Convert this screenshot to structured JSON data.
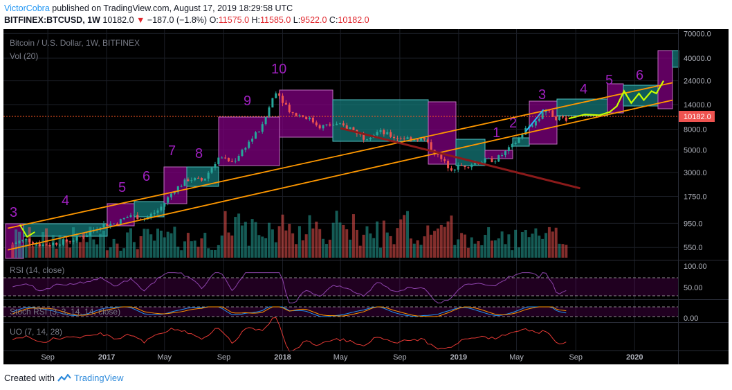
{
  "header": {
    "author": "VictorCobra",
    "published_text": "published on TradingView.com, August 17, 2019 18:29:58 UTC",
    "symbol": "BITFINEX:BTCUSD, 1W",
    "last": "10182.0",
    "change": "−187.0 (−1.8%)",
    "o_label": "O:",
    "o_value": "11575.0",
    "h_label": "H:",
    "h_value": "11585.0",
    "l_label": "L:",
    "l_value": "9522.0",
    "c_label": "C:",
    "c_value": "10182.0"
  },
  "legend": {
    "title": "Bitcoin / U.S. Dollar, 1W, BITFINEX",
    "vol": "Vol (20)",
    "rsi": "RSI (14, close)",
    "stoch": "Stoch RSI (3, 3, 14, 14, close)",
    "uo": "UO (7, 14, 28)"
  },
  "footer": {
    "created_with": "Created with",
    "brand": "TradingView"
  },
  "colors": {
    "up": "#26a69a",
    "down": "#ef5350",
    "purple_box": "#800080",
    "teal_box": "#1a8080",
    "trendline": "#ff9800",
    "wave_label": "#9c27b0",
    "rsi": "#7b3fb3",
    "uo": "#e53935"
  },
  "chart_data": {
    "type": "candlestick",
    "title": "Bitcoin / U.S. Dollar, 1W, BITFINEX",
    "y_scale": "log",
    "ylim": [
      450,
      75000
    ],
    "y_ticks": [
      "70000.0",
      "40000.0",
      "24000.0",
      "14000.0",
      "8000.0",
      "5000.0",
      "3000.0",
      "1750.0",
      "950.0",
      "550.0"
    ],
    "last_price": "10182.0",
    "x_ticks": [
      "Sep",
      "2017",
      "May",
      "Sep",
      "2018",
      "May",
      "Sep",
      "2019",
      "May",
      "Sep",
      "2020"
    ],
    "price_path": [
      [
        "2016-06-20",
        600
      ],
      [
        "2016-07-20",
        660
      ],
      [
        "2016-08-20",
        580
      ],
      [
        "2016-09-20",
        610
      ],
      [
        "2016-10-20",
        650
      ],
      [
        "2016-11-20",
        740
      ],
      [
        "2016-12-20",
        920
      ],
      [
        "2017-01-20",
        950
      ],
      [
        "2017-02-20",
        1150
      ],
      [
        "2017-03-20",
        1050
      ],
      [
        "2017-04-20",
        1300
      ],
      [
        "2017-05-20",
        2000
      ],
      [
        "2017-06-20",
        2600
      ],
      [
        "2017-07-20",
        2500
      ],
      [
        "2017-08-20",
        4200
      ],
      [
        "2017-09-20",
        3800
      ],
      [
        "2017-10-20",
        5800
      ],
      [
        "2017-11-20",
        8500
      ],
      [
        "2017-12-17",
        19500
      ],
      [
        "2018-01-20",
        11500
      ],
      [
        "2018-02-20",
        10500
      ],
      [
        "2018-03-20",
        8500
      ],
      [
        "2018-04-20",
        8900
      ],
      [
        "2018-05-20",
        8300
      ],
      [
        "2018-06-20",
        6600
      ],
      [
        "2018-07-20",
        7600
      ],
      [
        "2018-08-20",
        6700
      ],
      [
        "2018-09-20",
        6500
      ],
      [
        "2018-10-20",
        6450
      ],
      [
        "2018-11-20",
        4300
      ],
      [
        "2018-12-15",
        3300
      ],
      [
        "2019-01-20",
        3600
      ],
      [
        "2019-02-20",
        3900
      ],
      [
        "2019-03-20",
        4050
      ],
      [
        "2019-04-20",
        5300
      ],
      [
        "2019-05-20",
        8000
      ],
      [
        "2019-06-20",
        10500
      ],
      [
        "2019-06-26",
        13000
      ],
      [
        "2019-07-20",
        10500
      ],
      [
        "2019-08-17",
        10182
      ]
    ],
    "projection": [
      [
        "2019-08-17",
        10182
      ],
      [
        "2019-09-20",
        11200
      ],
      [
        "2019-10-20",
        11000
      ],
      [
        "2019-11-10",
        11800
      ],
      [
        "2019-11-25",
        13500
      ],
      [
        "2019-12-10",
        19000
      ],
      [
        "2019-12-25",
        14500
      ],
      [
        "2020-01-10",
        18000
      ],
      [
        "2020-01-20",
        15500
      ],
      [
        "2020-02-05",
        19000
      ],
      [
        "2020-02-15",
        18000
      ],
      [
        "2020-03-01",
        24000
      ]
    ],
    "trendlines": [
      {
        "from": [
          "2016-06-10",
          850
        ],
        "to": [
          "2020-03-20",
          23000
        ]
      },
      {
        "from": [
          "2016-06-10",
          520
        ],
        "to": [
          "2020-03-20",
          15500
        ]
      }
    ],
    "wave_labels": [
      "3",
      "4",
      "5",
      "6",
      "7",
      "8",
      "9",
      "10",
      "1",
      "2",
      "3",
      "4",
      "5",
      "6"
    ],
    "rsi_levels": [
      "100.00",
      "50.00"
    ],
    "stoch_levels": [
      "0.00"
    ]
  }
}
